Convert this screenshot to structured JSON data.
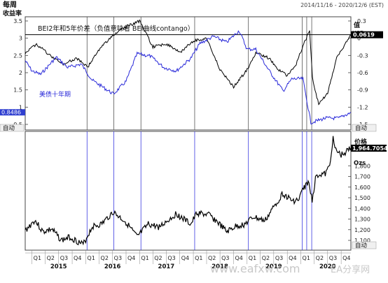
{
  "header": {
    "frequency_label": "每周",
    "left_axis_label": "收益率",
    "date_range": "2014/11/16 - 2020/12/6 (EST)"
  },
  "top_panel": {
    "title": "BEI2年和5年价差（负值意味着 BEI曲线contango）",
    "right_axis_label": "值",
    "right_axis_unit": "USD",
    "series_label": "美债十年期",
    "left_last_value": "0.8486",
    "right_last_value": "0.0619",
    "auto_left": "自动",
    "auto_right": "自动",
    "colors": {
      "yield": "#2929d9",
      "spread": "#000000",
      "left_marker": "#2f3fd0",
      "right_marker": "#000000"
    }
  },
  "bottom_panel": {
    "price_label": "价格",
    "last_price": "1,964.7054",
    "unit": "Ozs",
    "auto_right": "自动"
  },
  "quarter_labels": [
    "Q1",
    "Q2",
    "Q3",
    "Q4",
    "Q1",
    "Q2",
    "Q3",
    "Q4",
    "Q1",
    "Q2",
    "Q3",
    "Q4",
    "Q1",
    "Q2",
    "Q3",
    "Q4",
    "Q1",
    "Q2",
    "Q3",
    "Q4",
    "Q1",
    "Q2",
    "Q3",
    "Q4"
  ],
  "year_labels": [
    "2015",
    "2016",
    "2017",
    "2018",
    "2019",
    "2020"
  ],
  "watermark": "www.eafxw.com",
  "watermark_brand": "EA分享网",
  "chart_data": [
    {
      "type": "line",
      "title": "BEI2年和5年价差（负值意味着 BEI曲线contango）",
      "x_range": [
        "2014-11-16",
        "2020-12-06"
      ],
      "left_axis": {
        "label": "收益率",
        "ticks": [
          "0.5",
          "1",
          "1.5",
          "2",
          "2.5",
          "3",
          "3.5"
        ],
        "range": [
          0.5,
          3.5
        ]
      },
      "right_axis": {
        "label": "值 USD",
        "ticks": [
          "0.3",
          "0",
          "-0.3",
          "-0.6",
          "-0.9",
          "-1.2",
          "-1.5"
        ],
        "range": [
          -1.5,
          0.3
        ]
      },
      "reference_line": 0.0619,
      "vertical_markers": [
        "2016-01-10",
        "2016-07-10",
        "2017-01-10",
        "2018-01-10",
        "2019-01-10",
        "2020-01-10"
      ],
      "series": [
        {
          "name": "美债十年期",
          "axis": "left",
          "x": [
            "2014-11-16",
            "2015-01-01",
            "2015-03-01",
            "2015-06-15",
            "2015-09-01",
            "2015-12-01",
            "2016-02-15",
            "2016-07-08",
            "2016-10-01",
            "2016-12-15",
            "2017-03-15",
            "2017-06-15",
            "2017-09-08",
            "2017-12-15",
            "2018-02-15",
            "2018-05-18",
            "2018-08-15",
            "2018-11-08",
            "2019-01-01",
            "2019-03-01",
            "2019-06-01",
            "2019-09-03",
            "2019-11-01",
            "2020-01-15",
            "2020-03-09",
            "2020-06-15",
            "2020-09-15",
            "2020-12-06"
          ],
          "y": [
            2.35,
            2.05,
            1.95,
            2.45,
            2.15,
            2.25,
            1.78,
            1.38,
            1.75,
            2.55,
            2.48,
            2.15,
            2.05,
            2.42,
            2.85,
            3.05,
            2.88,
            3.22,
            2.68,
            2.68,
            2.05,
            1.47,
            1.82,
            1.82,
            0.55,
            0.68,
            0.68,
            0.85
          ]
        },
        {
          "name": "",
          "axis": "right",
          "x": [
            "2014-11-16",
            "2015-02-01",
            "2015-05-01",
            "2015-08-01",
            "2015-11-01",
            "2016-01-15",
            "2016-04-01",
            "2016-07-01",
            "2016-10-01",
            "2017-01-01",
            "2017-04-01",
            "2017-07-01",
            "2017-10-01",
            "2018-01-01",
            "2018-04-01",
            "2018-07-01",
            "2018-10-01",
            "2019-01-01",
            "2019-03-01",
            "2019-06-01",
            "2019-08-01",
            "2019-10-01",
            "2019-12-01",
            "2020-01-20",
            "2020-03-01",
            "2020-03-20",
            "2020-05-01",
            "2020-07-01",
            "2020-09-01",
            "2020-12-06"
          ],
          "y": [
            -0.25,
            -0.1,
            -0.3,
            -0.45,
            -0.35,
            -0.5,
            -0.2,
            0.05,
            0.2,
            0.3,
            -0.15,
            -0.1,
            -0.25,
            -0.05,
            0.0,
            -0.55,
            -0.85,
            -0.55,
            -0.25,
            -0.35,
            -0.55,
            -0.65,
            -0.45,
            -0.1,
            0.12,
            -0.7,
            -1.15,
            -0.95,
            -0.35,
            0.06
          ]
        }
      ]
    },
    {
      "type": "line",
      "title": "",
      "x_range": [
        "2014-11-16",
        "2020-12-06"
      ],
      "y_axis": {
        "label": "价格 Ozs",
        "ticks": [
          "1,900",
          "1,800",
          "1,700",
          "1,600",
          "1,500",
          "1,400",
          "1,300",
          "1,200",
          "1,100"
        ],
        "range": [
          1050,
          2050
        ]
      },
      "series": [
        {
          "name": "",
          "x": [
            "2014-11-16",
            "2015-01-20",
            "2015-03-15",
            "2015-05-15",
            "2015-07-20",
            "2015-09-15",
            "2015-12-15",
            "2016-02-15",
            "2016-04-15",
            "2016-07-05",
            "2016-10-01",
            "2016-12-15",
            "2017-03-01",
            "2017-05-15",
            "2017-09-08",
            "2017-12-15",
            "2018-01-25",
            "2018-04-15",
            "2018-06-15",
            "2018-08-15",
            "2018-10-15",
            "2018-12-15",
            "2019-02-15",
            "2019-05-01",
            "2019-06-25",
            "2019-09-01",
            "2019-11-01",
            "2019-12-20",
            "2020-01-08",
            "2020-02-20",
            "2020-03-18",
            "2020-04-15",
            "2020-06-15",
            "2020-07-15",
            "2020-08-07",
            "2020-08-20",
            "2020-10-01",
            "2020-12-06"
          ],
          "y": [
            1190,
            1290,
            1180,
            1205,
            1100,
            1130,
            1060,
            1230,
            1250,
            1365,
            1270,
            1130,
            1250,
            1225,
            1350,
            1250,
            1355,
            1340,
            1270,
            1180,
            1230,
            1250,
            1320,
            1280,
            1400,
            1540,
            1470,
            1480,
            1560,
            1650,
            1480,
            1720,
            1720,
            1800,
            2070,
            1950,
            1900,
            1965
          ]
        }
      ]
    }
  ]
}
